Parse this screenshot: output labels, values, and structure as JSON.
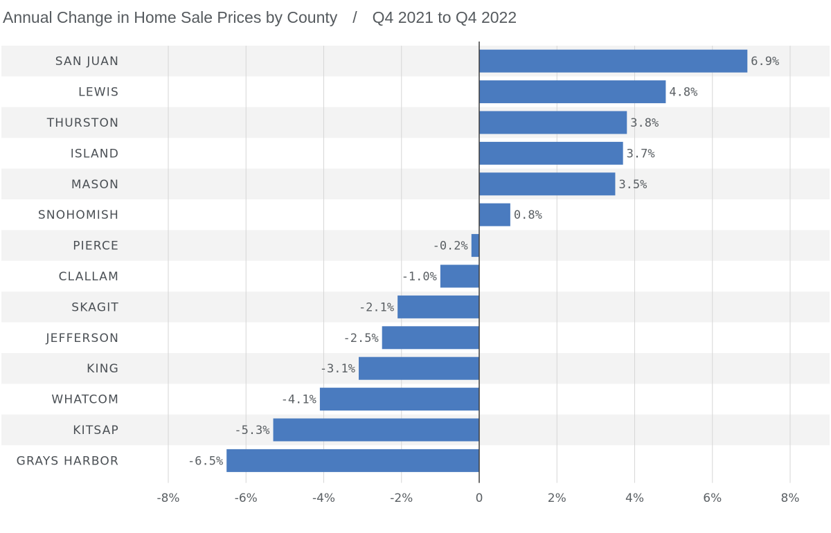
{
  "chart_data": {
    "type": "bar",
    "orientation": "horizontal",
    "title": "Annual Change in Home Sale Prices by County",
    "subtitle": "Q4 2021 to Q4 2022",
    "categories": [
      "SAN JUAN",
      "LEWIS",
      "THURSTON",
      "ISLAND",
      "MASON",
      "SNOHOMISH",
      "PIERCE",
      "CLALLAM",
      "SKAGIT",
      "JEFFERSON",
      "KING",
      "WHATCOM",
      "KITSAP",
      "GRAYS HARBOR"
    ],
    "values": [
      6.9,
      4.8,
      3.8,
      3.7,
      3.5,
      0.8,
      -0.2,
      -1.0,
      -2.1,
      -2.5,
      -3.1,
      -4.1,
      -5.3,
      -6.5
    ],
    "value_labels": [
      "6.9%",
      "4.8%",
      "3.8%",
      "3.7%",
      "3.5%",
      "0.8%",
      "-0.2%",
      "-1.0%",
      "-2.1%",
      "-2.5%",
      "-3.1%",
      "-4.1%",
      "-5.3%",
      "-6.5%"
    ],
    "xticks": [
      -8,
      -6,
      -4,
      -2,
      0,
      2,
      4,
      6,
      8
    ],
    "xtick_labels": [
      "-8%",
      "-6%",
      "-4%",
      "-2%",
      "0",
      "2%",
      "4%",
      "6%",
      "8%"
    ],
    "xlim": [
      -8,
      8
    ],
    "xlabel": "",
    "ylabel": "",
    "grid": true,
    "legend": "none",
    "bar_color": "#4a7bbf",
    "band_color": "#f3f3f3"
  }
}
